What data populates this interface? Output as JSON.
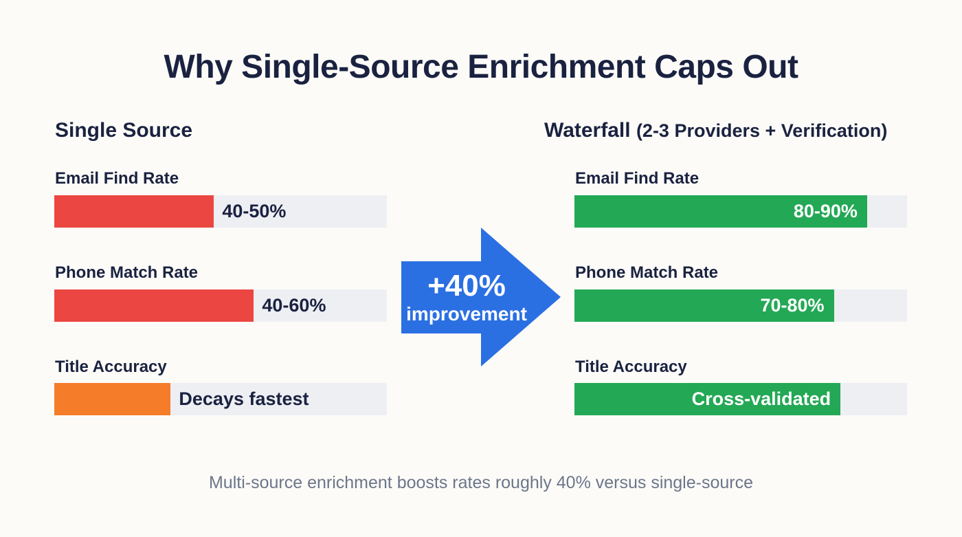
{
  "page": {
    "title": "Why Single-Source Enrichment Caps Out",
    "footer": "Multi-source enrichment boosts rates roughly 40% versus single-source"
  },
  "colors": {
    "heading_navy": "#1A2240",
    "bar_red": "#EB4641",
    "bar_orange": "#F57C28",
    "bar_green": "#23A855",
    "arrow_blue": "#2B70E2",
    "bar_track_gray": "#EDEFF3",
    "footer_gray": "#6C7689",
    "value_text_light": "#FFFFFF"
  },
  "arrow": {
    "line1": "+40%",
    "line2": "improvement"
  },
  "chart_data": {
    "type": "bar",
    "title": "Why Single-Source Enrichment Caps Out",
    "note": "Multi-source enrichment boosts rates roughly 40% versus single-source",
    "annotation": "+40% improvement",
    "axis_range_pct": [
      0,
      100
    ],
    "legend_position": "none",
    "grid": false,
    "groups": [
      {
        "name": "Single Source",
        "name_suffix": "",
        "bars": [
          {
            "label": "Email Find Rate",
            "value_label": "40-50%",
            "fill_pct": 48,
            "color": "#EB4641"
          },
          {
            "label": "Phone Match Rate",
            "value_label": "40-60%",
            "fill_pct": 60,
            "color": "#EB4641"
          },
          {
            "label": "Title Accuracy",
            "value_label": "Decays fastest",
            "fill_pct": 35,
            "color": "#F57C28"
          }
        ]
      },
      {
        "name": "Waterfall",
        "name_suffix": "(2-3 Providers + Verification)",
        "bars": [
          {
            "label": "Email Find Rate",
            "value_label": "80-90%",
            "fill_pct": 88,
            "color": "#23A855"
          },
          {
            "label": "Phone Match Rate",
            "value_label": "70-80%",
            "fill_pct": 78,
            "color": "#23A855"
          },
          {
            "label": "Title Accuracy",
            "value_label": "Cross-validated",
            "fill_pct": 80,
            "color": "#23A855"
          }
        ]
      }
    ]
  }
}
